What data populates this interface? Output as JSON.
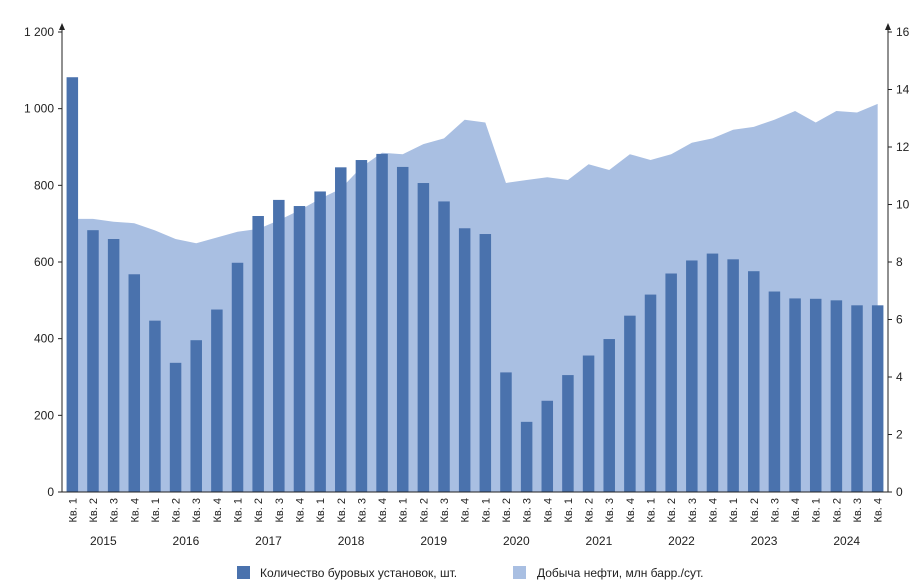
{
  "chart_data": {
    "type": "bar+area",
    "colors": {
      "bars": "#4a72ad",
      "area": "#a9bfe2"
    },
    "categories": [
      "Кв. 1",
      "Кв. 2",
      "Кв. 3",
      "Кв. 4",
      "Кв. 1",
      "Кв. 2",
      "Кв. 3",
      "Кв. 4",
      "Кв. 1",
      "Кв. 2",
      "Кв. 3",
      "Кв. 4",
      "Кв. 1",
      "Кв. 2",
      "Кв. 3",
      "Кв. 4",
      "Кв. 1",
      "Кв. 2",
      "Кв. 3",
      "Кв. 4",
      "Кв. 1",
      "Кв. 2",
      "Кв. 3",
      "Кв. 4",
      "Кв. 1",
      "Кв. 2",
      "Кв. 3",
      "Кв. 4",
      "Кв. 1",
      "Кв. 2",
      "Кв. 3",
      "Кв. 4",
      "Кв. 1",
      "Кв. 2",
      "Кв. 3",
      "Кв. 4",
      "Кв. 1",
      "Кв. 2",
      "Кв. 3",
      "Кв. 4"
    ],
    "years": [
      "2015",
      "2016",
      "2017",
      "2018",
      "2019",
      "2020",
      "2021",
      "2022",
      "2023",
      "2024"
    ],
    "series": [
      {
        "name": "Количество буровых установок, шт.",
        "kind": "bar",
        "axis": "left",
        "values": [
          1082,
          683,
          660,
          568,
          447,
          337,
          396,
          476,
          598,
          720,
          762,
          746,
          784,
          847,
          866,
          882,
          848,
          806,
          758,
          688,
          673,
          312,
          183,
          238,
          305,
          356,
          399,
          460,
          515,
          570,
          604,
          622,
          607,
          576,
          523,
          505,
          504,
          500,
          487,
          487
        ]
      },
      {
        "name": "Добыча нефти, млн барр./сут.",
        "kind": "area",
        "axis": "right",
        "values": [
          9.5,
          9.5,
          9.4,
          9.35,
          9.1,
          8.8,
          8.65,
          8.85,
          9.05,
          9.15,
          9.45,
          9.8,
          10.2,
          10.55,
          11.3,
          11.8,
          11.75,
          12.1,
          12.3,
          12.95,
          12.85,
          10.75,
          10.85,
          10.95,
          10.85,
          11.4,
          11.2,
          11.75,
          11.55,
          11.75,
          12.15,
          12.3,
          12.6,
          12.7,
          12.95,
          13.25,
          12.85,
          13.25,
          13.2,
          13.5
        ]
      }
    ],
    "y_left": {
      "min": 0,
      "max": 1200,
      "ticks": [
        0,
        200,
        400,
        600,
        800,
        1000,
        1200
      ],
      "tick_labels": [
        "0",
        "200",
        "400",
        "600",
        "800",
        "1 000",
        "1 200"
      ]
    },
    "y_right": {
      "min": 0,
      "max": 16,
      "ticks": [
        0,
        2,
        4,
        6,
        8,
        10,
        12,
        14,
        16
      ],
      "tick_labels": [
        "0",
        "2",
        "4",
        "6",
        "8",
        "10",
        "12",
        "14",
        "16"
      ]
    },
    "grid": false,
    "legend": "bottom"
  }
}
